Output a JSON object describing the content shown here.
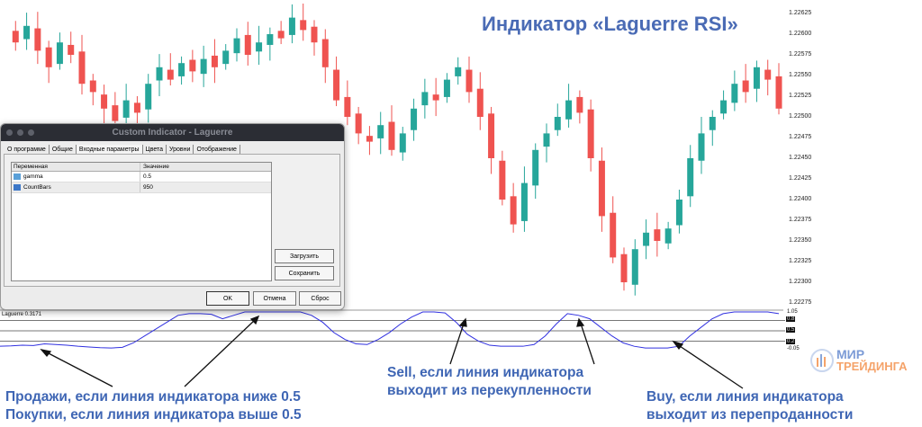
{
  "title": "Индикатор «Laguerre RSI»",
  "chart_data": {
    "type": "candlestick",
    "ylim": [
      1.2227,
      1.2263
    ],
    "y_ticks": [
      "1.22625",
      "1.22600",
      "1.22575",
      "1.22550",
      "1.22525",
      "1.22500",
      "1.22475",
      "1.22450",
      "1.22425",
      "1.22400",
      "1.22375",
      "1.22350",
      "1.22325",
      "1.22300",
      "1.22275"
    ],
    "closes": [
      1.226,
      1.2259,
      1.2261,
      1.2258,
      1.2256,
      1.2259,
      1.22575,
      1.2254,
      1.2253,
      1.2251,
      1.22495,
      1.2252,
      1.22505,
      1.2254,
      1.2256,
      1.22545,
      1.22565,
      1.22555,
      1.2257,
      1.2256,
      1.2258,
      1.22595,
      1.22575,
      1.2259,
      1.226,
      1.22595,
      1.2262,
      1.22605,
      1.2259,
      1.2256,
      1.2252,
      1.225,
      1.2248,
      1.2247,
      1.2249,
      1.2246,
      1.2248,
      1.2251,
      1.2253,
      1.2252,
      1.22545,
      1.2256,
      1.2253,
      1.225,
      1.2245,
      1.224,
      1.2237,
      1.2242,
      1.2246,
      1.2248,
      1.225,
      1.2252,
      1.22505,
      1.2245,
      1.2238,
      1.2233,
      1.223,
      1.2234,
      1.2236,
      1.2235,
      1.22365,
      1.224,
      1.2245,
      1.2248,
      1.225,
      1.2252,
      1.2254,
      1.2253,
      1.2256,
      1.22545,
      1.2251
    ],
    "indicator": {
      "name": "Laguerre 0.3171",
      "ylim": [
        -0.05,
        1.05
      ],
      "levels": [
        "0.8",
        "0.5",
        "0.2"
      ],
      "top_label": "1.05",
      "bottom_label": "-0.05",
      "values": [
        0.05,
        0.06,
        0.08,
        0.07,
        0.12,
        0.1,
        0.08,
        0.05,
        0.03,
        0.01,
        0.0,
        0.02,
        0.15,
        0.35,
        0.55,
        0.75,
        0.95,
        1.0,
        1.0,
        0.98,
        0.85,
        0.95,
        1.05,
        1.05,
        1.05,
        1.05,
        1.05,
        1.05,
        0.95,
        0.75,
        0.45,
        0.25,
        0.12,
        0.1,
        0.25,
        0.45,
        0.7,
        0.9,
        1.05,
        1.05,
        1.02,
        0.75,
        0.4,
        0.2,
        0.08,
        0.05,
        0.05,
        0.05,
        0.1,
        0.35,
        0.7,
        1.0,
        0.95,
        0.85,
        0.6,
        0.35,
        0.15,
        0.05,
        0.0,
        0.0,
        0.0,
        0.05,
        0.35,
        0.6,
        0.85,
        1.0,
        1.05,
        1.05,
        1.05,
        1.05,
        1.0
      ]
    },
    "colors": {
      "up": "#26a69a",
      "down": "#ef5350",
      "indicator": "#3030e0"
    }
  },
  "dialog": {
    "title": "Custom Indicator - Laguerre",
    "tabs": [
      "О программе",
      "Общие",
      "Входные параметры",
      "Цвета",
      "Уровни",
      "Отображение"
    ],
    "columns": [
      "Переменная",
      "Значение"
    ],
    "rows": [
      {
        "name": "gamma",
        "value": "0.5"
      },
      {
        "name": "CountBars",
        "value": "950"
      }
    ],
    "load": "Загрузить",
    "save": "Сохранить",
    "ok": "OK",
    "cancel": "Отмена",
    "reset": "Сброс"
  },
  "annotations": {
    "left1": "Продажи, если линия индикатора ниже 0.5",
    "left2": "Покупки, если линия индикатора выше 0.5",
    "mid1": "Sell, если линия индикатора",
    "mid2": "выходит из перекупленности",
    "right1": "Buy, если линия индикатора",
    "right2": "выходит из перепроданности"
  },
  "logo": {
    "line1": "МИР",
    "line2": "ТРЕЙДИНГА"
  }
}
